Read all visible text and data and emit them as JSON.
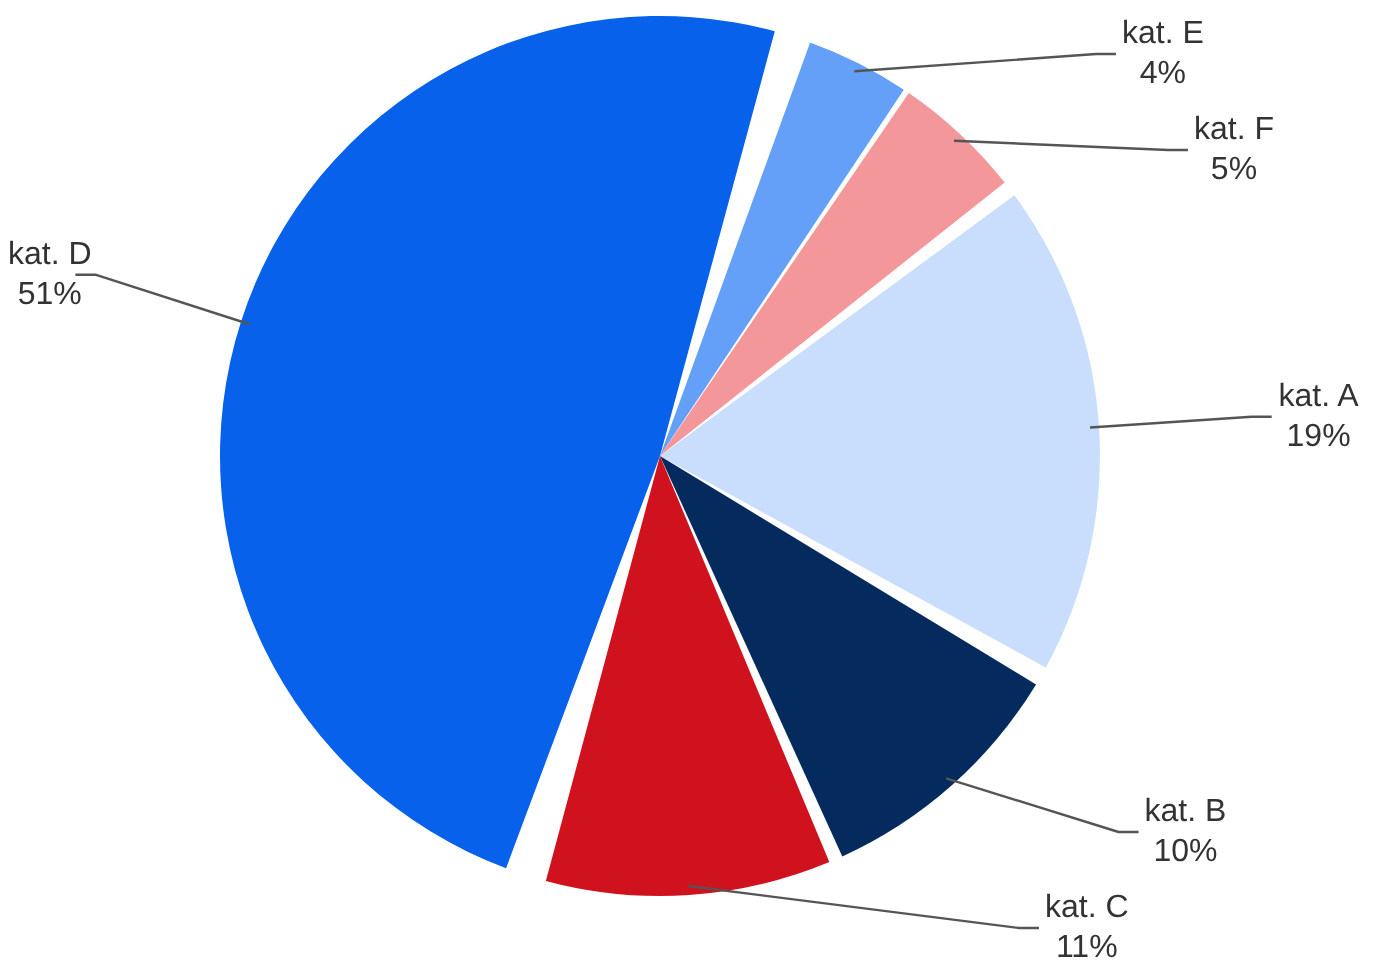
{
  "chart_data": {
    "type": "pie",
    "categories": [
      "kat. A",
      "kat. B",
      "kat. C",
      "kat. D",
      "kat. E",
      "kat. F"
    ],
    "values": [
      19,
      10,
      11,
      51,
      4,
      5
    ],
    "colors": [
      "#c9defc",
      "#052b5e",
      "#d0121e",
      "#0761eb",
      "#64a0f8",
      "#f4979b"
    ],
    "value_labels": [
      "19%",
      "10%",
      "11%",
      "51%",
      "4%",
      "5%"
    ]
  }
}
